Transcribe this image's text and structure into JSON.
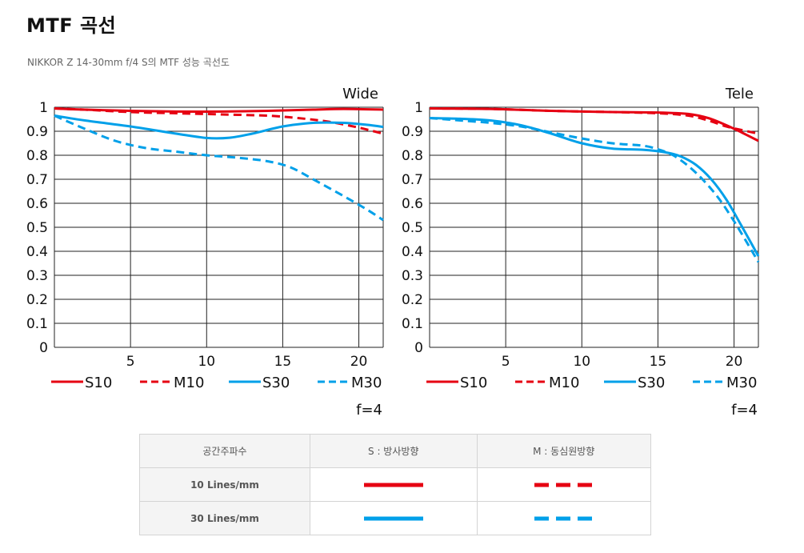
{
  "page": {
    "title": "MTF 곡선",
    "subtitle": "NIKKOR Z 14-30mm f/4 S의 MTF 성능 곡선도"
  },
  "colors": {
    "red": "#e60012",
    "blue": "#00a0e9"
  },
  "chart_data": [
    {
      "type": "line",
      "title": "Wide",
      "note": "f=4",
      "xlim": [
        0,
        21.6
      ],
      "ylim": [
        0,
        1
      ],
      "xticks": [
        5,
        10,
        15,
        20
      ],
      "yticks": [
        0,
        0.1,
        0.2,
        0.3,
        0.4,
        0.5,
        0.6,
        0.7,
        0.8,
        0.9,
        1
      ],
      "ytick_labels": [
        "0",
        "0.1",
        "0.2",
        "0.3",
        "0.4",
        "0.5",
        "0.6",
        "0.7",
        "0.8",
        "0.9",
        "1"
      ],
      "grid": true,
      "series": [
        {
          "name": "S10",
          "color": "#e60012",
          "dash": false,
          "points": [
            [
              0,
              0.995
            ],
            [
              2,
              0.99
            ],
            [
              5,
              0.985
            ],
            [
              8,
              0.982
            ],
            [
              11,
              0.982
            ],
            [
              14,
              0.985
            ],
            [
              17,
              0.99
            ],
            [
              19,
              0.993
            ],
            [
              21.6,
              0.99
            ]
          ]
        },
        {
          "name": "M10",
          "color": "#e60012",
          "dash": true,
          "points": [
            [
              0,
              0.995
            ],
            [
              2,
              0.99
            ],
            [
              5,
              0.98
            ],
            [
              8,
              0.975
            ],
            [
              11,
              0.97
            ],
            [
              14,
              0.965
            ],
            [
              16,
              0.955
            ],
            [
              18,
              0.94
            ],
            [
              20,
              0.915
            ],
            [
              21.6,
              0.89
            ]
          ]
        },
        {
          "name": "S30",
          "color": "#00a0e9",
          "dash": false,
          "points": [
            [
              0,
              0.965
            ],
            [
              2,
              0.945
            ],
            [
              5,
              0.92
            ],
            [
              8,
              0.89
            ],
            [
              10,
              0.872
            ],
            [
              11.5,
              0.873
            ],
            [
              13,
              0.89
            ],
            [
              15,
              0.92
            ],
            [
              17,
              0.935
            ],
            [
              19,
              0.935
            ],
            [
              20.5,
              0.927
            ],
            [
              21.6,
              0.918
            ]
          ]
        },
        {
          "name": "M30",
          "color": "#00a0e9",
          "dash": true,
          "points": [
            [
              0,
              0.965
            ],
            [
              2,
              0.91
            ],
            [
              4,
              0.86
            ],
            [
              6,
              0.83
            ],
            [
              8,
              0.815
            ],
            [
              10,
              0.8
            ],
            [
              12,
              0.79
            ],
            [
              14,
              0.775
            ],
            [
              15.5,
              0.75
            ],
            [
              17,
              0.7
            ],
            [
              19,
              0.63
            ],
            [
              20.5,
              0.575
            ],
            [
              21.6,
              0.53
            ]
          ]
        }
      ]
    },
    {
      "type": "line",
      "title": "Tele",
      "note": "f=4",
      "xlim": [
        0,
        21.6
      ],
      "ylim": [
        0,
        1
      ],
      "xticks": [
        5,
        10,
        15,
        20
      ],
      "yticks": [
        0,
        0.1,
        0.2,
        0.3,
        0.4,
        0.5,
        0.6,
        0.7,
        0.8,
        0.9,
        1
      ],
      "ytick_labels": [
        "0",
        "0.1",
        "0.2",
        "0.3",
        "0.4",
        "0.5",
        "0.6",
        "0.7",
        "0.8",
        "0.9",
        "1"
      ],
      "grid": true,
      "series": [
        {
          "name": "S10",
          "color": "#e60012",
          "dash": false,
          "points": [
            [
              0,
              0.995
            ],
            [
              4,
              0.993
            ],
            [
              8,
              0.985
            ],
            [
              12,
              0.98
            ],
            [
              15,
              0.978
            ],
            [
              17,
              0.972
            ],
            [
              18.3,
              0.955
            ],
            [
              19.5,
              0.925
            ],
            [
              20.5,
              0.895
            ],
            [
              21.6,
              0.86
            ]
          ]
        },
        {
          "name": "M10",
          "color": "#e60012",
          "dash": true,
          "points": [
            [
              0,
              0.995
            ],
            [
              4,
              0.993
            ],
            [
              8,
              0.985
            ],
            [
              12,
              0.98
            ],
            [
              15,
              0.975
            ],
            [
              17,
              0.965
            ],
            [
              18.3,
              0.945
            ],
            [
              19.5,
              0.92
            ],
            [
              20.5,
              0.905
            ],
            [
              21.6,
              0.89
            ]
          ]
        },
        {
          "name": "S30",
          "color": "#00a0e9",
          "dash": false,
          "points": [
            [
              0,
              0.955
            ],
            [
              2,
              0.952
            ],
            [
              4,
              0.945
            ],
            [
              6,
              0.925
            ],
            [
              8,
              0.89
            ],
            [
              10,
              0.85
            ],
            [
              12,
              0.828
            ],
            [
              14,
              0.823
            ],
            [
              15.5,
              0.812
            ],
            [
              16.5,
              0.795
            ],
            [
              17.5,
              0.76
            ],
            [
              18.5,
              0.7
            ],
            [
              19.5,
              0.615
            ],
            [
              20.5,
              0.505
            ],
            [
              21.6,
              0.38
            ]
          ]
        },
        {
          "name": "M30",
          "color": "#00a0e9",
          "dash": true,
          "points": [
            [
              0,
              0.955
            ],
            [
              2,
              0.945
            ],
            [
              4,
              0.935
            ],
            [
              6,
              0.92
            ],
            [
              8,
              0.895
            ],
            [
              10,
              0.87
            ],
            [
              12,
              0.85
            ],
            [
              14,
              0.84
            ],
            [
              15,
              0.825
            ],
            [
              16,
              0.8
            ],
            [
              17,
              0.755
            ],
            [
              18,
              0.695
            ],
            [
              19,
              0.62
            ],
            [
              20,
              0.525
            ],
            [
              21,
              0.42
            ],
            [
              21.6,
              0.355
            ]
          ]
        }
      ]
    }
  ],
  "legend_table": {
    "header": [
      "공간주파수",
      "S : 방사방향",
      "M : 동심원방향"
    ],
    "rows": [
      {
        "label": "10 Lines/mm",
        "color": "#e60012"
      },
      {
        "label": "30 Lines/mm",
        "color": "#00a0e9"
      }
    ]
  }
}
